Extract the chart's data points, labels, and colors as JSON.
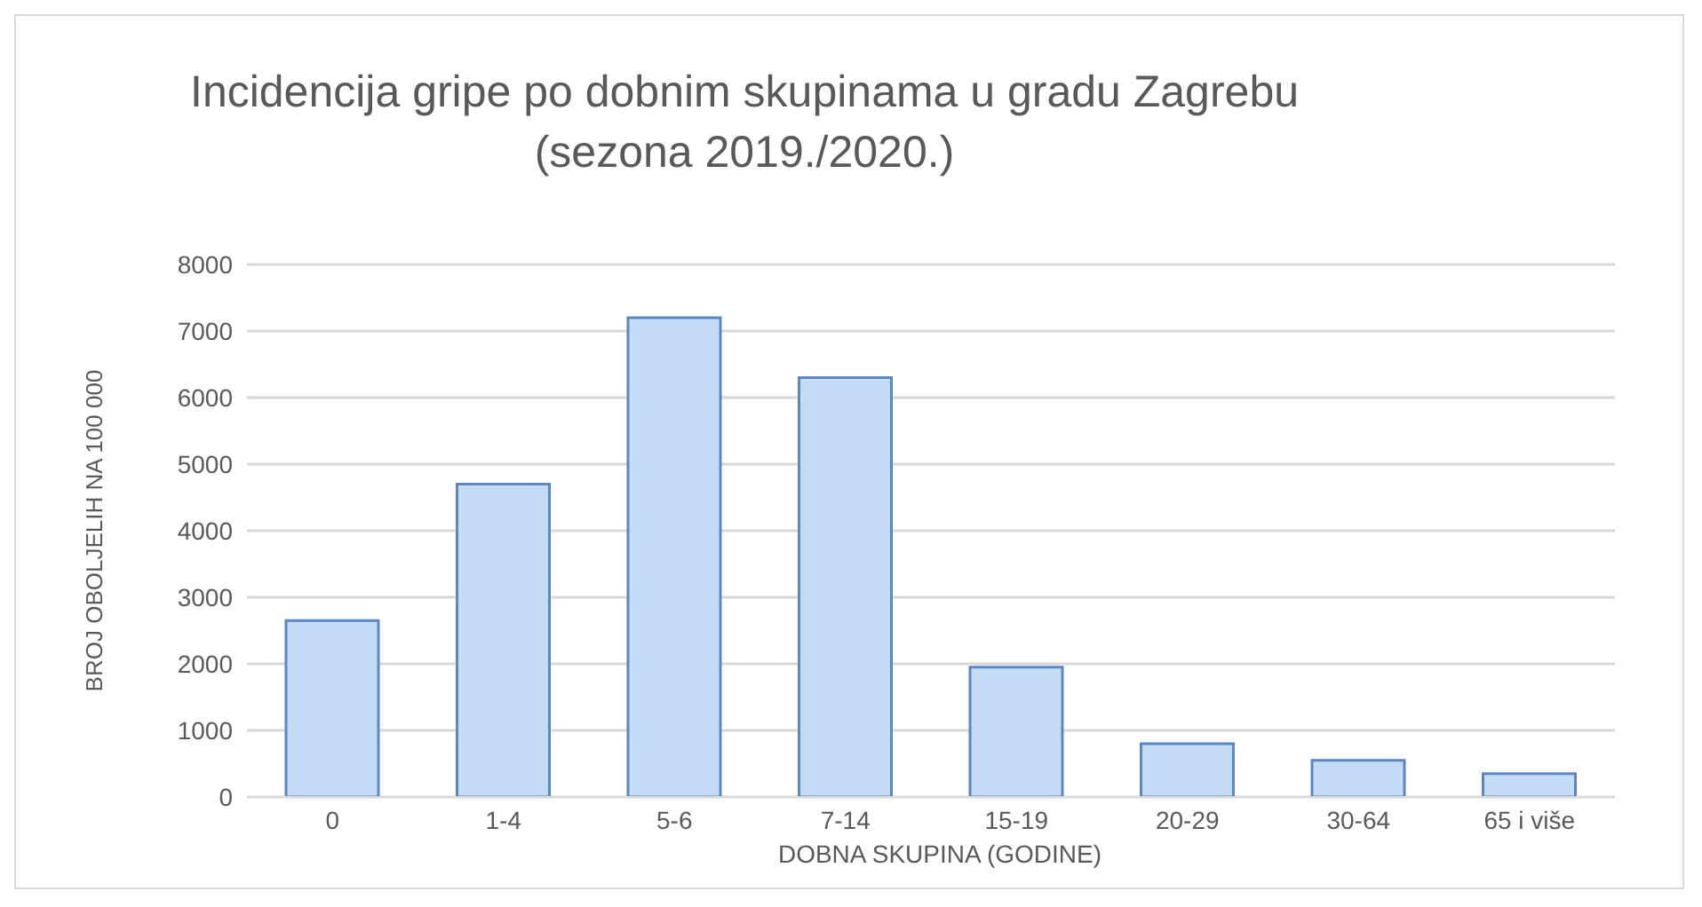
{
  "chart_data": {
    "type": "bar",
    "title": "Incidencija gripe po dobnim skupinama u gradu Zagrebu",
    "subtitle": "(sezona 2019./2020.)",
    "xlabel": "DOBNA SKUPINA (GODINE)",
    "ylabel": "BROJ OBOLJELIH NA 100 000",
    "categories": [
      "0",
      "1-4",
      "5-6",
      "7-14",
      "15-19",
      "20-29",
      "30-64",
      "65 i više"
    ],
    "values": [
      2650,
      4700,
      7200,
      6300,
      1950,
      800,
      550,
      350
    ],
    "color": "#c5dcf7",
    "ylim": [
      0,
      8000
    ],
    "yticks": [
      0,
      1000,
      2000,
      3000,
      4000,
      5000,
      6000,
      7000,
      8000
    ],
    "grid": "y",
    "legend": false
  }
}
